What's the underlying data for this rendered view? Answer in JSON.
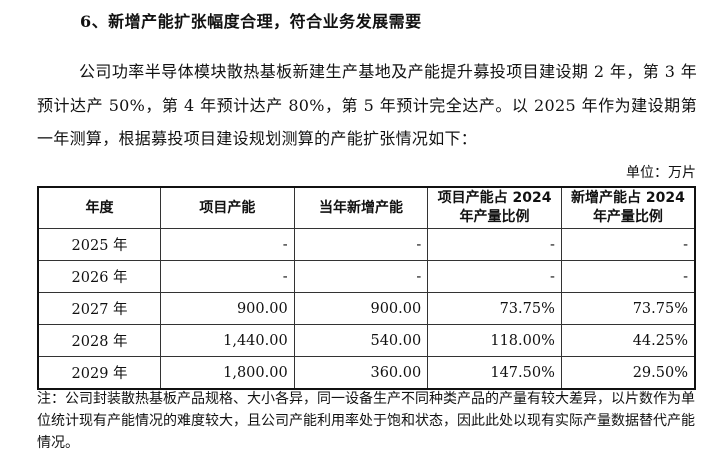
{
  "heading": "6、新增产能扩张幅度合理，符合业务发展需要",
  "paragraph": "公司功率半导体模块散热基板新建生产基地及产能提升募投项目建设期 2 年，第 3 年预计达产 50%，第 4 年预计达产 80%，第 5 年预计完全达产。以 2025 年作为建设期第一年测算，根据募投项目建设规划测算的产能扩张情况如下：",
  "unit": "单位：万片",
  "table": {
    "headers": [
      "年度",
      "项目产能",
      "当年新增产能",
      "项目产能占 2024 年产量比例",
      "新增产能占 2024 年产量比例"
    ],
    "rows": [
      [
        "2025 年",
        "-",
        "-",
        "-",
        "-"
      ],
      [
        "2026 年",
        "-",
        "-",
        "-",
        "-"
      ],
      [
        "2027 年",
        "900.00",
        "900.00",
        "73.75%",
        "73.75%"
      ],
      [
        "2028 年",
        "1,440.00",
        "540.00",
        "118.00%",
        "44.25%"
      ],
      [
        "2029 年",
        "1,800.00",
        "360.00",
        "147.50%",
        "29.50%"
      ]
    ]
  },
  "note": "注：公司封装散热基板产品规格、大小各异，同一设备生产不同种类产品的产量有较大差异，以片数作为单位统计现有产能情况的难度较大，且公司产能利用率处于饱和状态，因此此处以现有实际产量数据替代产能情况。"
}
